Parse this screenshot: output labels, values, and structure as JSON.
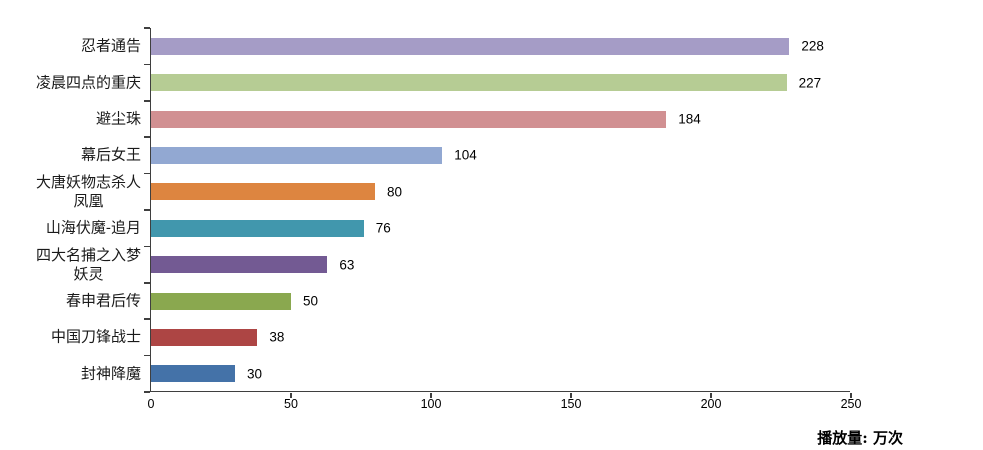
{
  "chart_data": {
    "type": "bar",
    "orientation": "horizontal",
    "title": "",
    "categories": [
      "忍者通告",
      "凌晨四点的重庆",
      "避尘珠",
      "幕后女王",
      "大唐妖物志杀人\n凤凰",
      "山海伏魔-追月",
      "四大名捕之入梦\n妖灵",
      "春申君后传",
      "中国刀锋战士",
      "封神降魔"
    ],
    "values": [
      228,
      227,
      184,
      104,
      80,
      76,
      63,
      50,
      38,
      30
    ],
    "colors": [
      "#a59cc6",
      "#b6cc94",
      "#d19092",
      "#92a8d2",
      "#dd8540",
      "#4197ad",
      "#735a93",
      "#8aa84f",
      "#ad4544",
      "#4472a8"
    ],
    "xticks": [
      0,
      50,
      100,
      150,
      200,
      250
    ],
    "xlim": [
      0,
      250
    ],
    "grid": false,
    "legend": false,
    "xlabel": "",
    "ylabel": "",
    "unit_label": "播放量: 万次",
    "axis_color": "#3f3f3f"
  }
}
